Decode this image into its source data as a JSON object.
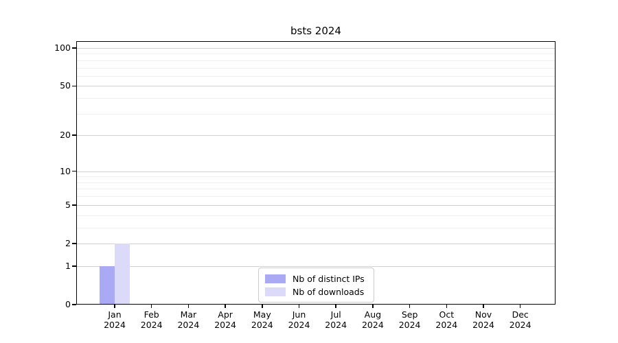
{
  "chart_data": {
    "type": "bar",
    "title": "bsts 2024",
    "x_categories": [
      "Jan",
      "Feb",
      "Mar",
      "Apr",
      "May",
      "Jun",
      "Jul",
      "Aug",
      "Sep",
      "Oct",
      "Nov",
      "Dec"
    ],
    "x_category_year": "2024",
    "series": [
      {
        "name": "Nb of distinct IPs",
        "color": "#a9a9f4",
        "values": [
          1,
          0,
          0,
          0,
          0,
          0,
          0,
          0,
          0,
          0,
          0,
          0
        ]
      },
      {
        "name": "Nb of downloads",
        "color": "#dbdbf9",
        "values": [
          2,
          0,
          0,
          0,
          0,
          0,
          0,
          0,
          0,
          0,
          0,
          0
        ]
      }
    ],
    "y_axis": {
      "scale": "log1p",
      "range": [
        0,
        100
      ],
      "ticks": [
        0,
        1,
        2,
        5,
        10,
        20,
        50,
        100
      ],
      "minor_gridlines": [
        3,
        4,
        6,
        7,
        8,
        9,
        30,
        40,
        60,
        70,
        80,
        90
      ]
    },
    "grid": "horizontal",
    "legend_position": "bottom-center"
  }
}
